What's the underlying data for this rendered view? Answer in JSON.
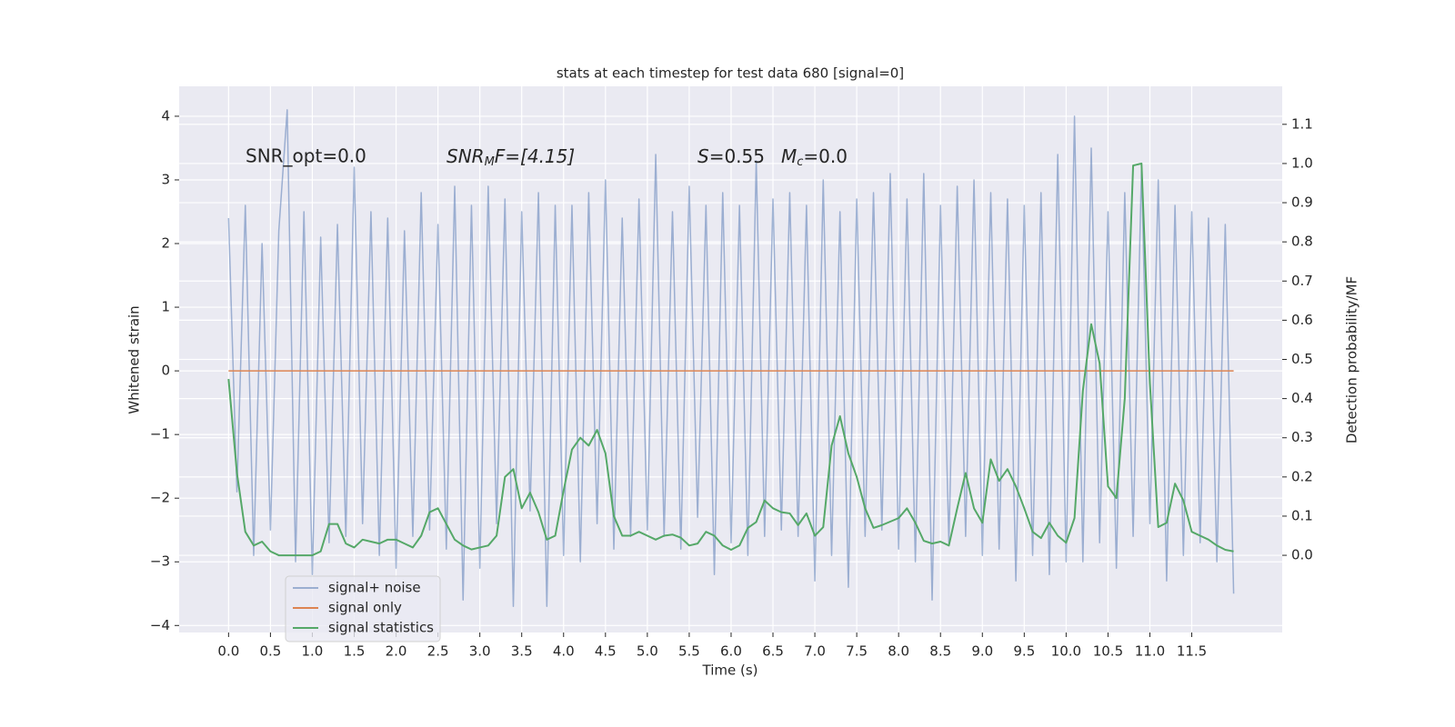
{
  "chart_data": {
    "type": "line",
    "title": "stats at each timestep for test data 680 [signal=0]",
    "xlabel": "Time (s)",
    "ylabel": "Whitened strain",
    "y2label": "Detection probability/MF",
    "annotations": [
      "SNR_opt=0.0",
      {
        "var": "SNR",
        "sub": "M",
        "tail": "F=[4.15]"
      },
      {
        "var": "S",
        "tail": "=0.55"
      },
      {
        "var": "M",
        "sub": "c",
        "tail": "=0.0"
      }
    ],
    "x": [
      0.0,
      0.1,
      0.2,
      0.3,
      0.4,
      0.5,
      0.6,
      0.7,
      0.8,
      0.9,
      1.0,
      1.1,
      1.2,
      1.3,
      1.4,
      1.5,
      1.6,
      1.7,
      1.8,
      1.9,
      2.0,
      2.1,
      2.2,
      2.3,
      2.4,
      2.5,
      2.6,
      2.7,
      2.8,
      2.9,
      3.0,
      3.1,
      3.2,
      3.3,
      3.4,
      3.5,
      3.6,
      3.7,
      3.8,
      3.9,
      4.0,
      4.1,
      4.2,
      4.3,
      4.4,
      4.5,
      4.6,
      4.7,
      4.8,
      4.9,
      5.0,
      5.1,
      5.2,
      5.3,
      5.4,
      5.5,
      5.6,
      5.7,
      5.8,
      5.9,
      6.0,
      6.1,
      6.2,
      6.3,
      6.4,
      6.5,
      6.6,
      6.7,
      6.8,
      6.9,
      7.0,
      7.1,
      7.2,
      7.3,
      7.4,
      7.5,
      7.6,
      7.7,
      7.8,
      7.9,
      8.0,
      8.1,
      8.2,
      8.3,
      8.4,
      8.5,
      8.6,
      8.7,
      8.8,
      8.9,
      9.0,
      9.1,
      9.2,
      9.3,
      9.4,
      9.5,
      9.6,
      9.7,
      9.8,
      9.9,
      10.0,
      10.1,
      10.2,
      10.3,
      10.4,
      10.5,
      10.6,
      10.7,
      10.8,
      10.9,
      11.0,
      11.1,
      11.2,
      11.3,
      11.4,
      11.5,
      11.6,
      11.7,
      11.8,
      11.9,
      12.0
    ],
    "series": [
      {
        "name": "signal+ noise",
        "color": "#4c72b0",
        "opacity": 0.5,
        "values": [
          2.4,
          -1.9,
          2.6,
          -2.9,
          2.0,
          -2.5,
          2.2,
          4.1,
          -3.0,
          2.5,
          -3.2,
          2.1,
          -2.7,
          2.3,
          -2.6,
          3.2,
          -2.4,
          2.5,
          -2.9,
          2.4,
          -3.1,
          2.2,
          -2.6,
          2.8,
          -2.5,
          2.3,
          -2.8,
          2.9,
          -3.6,
          2.6,
          -3.1,
          2.9,
          -2.4,
          2.7,
          -3.7,
          2.5,
          -2.2,
          2.8,
          -3.7,
          2.6,
          -2.9,
          2.6,
          -3.0,
          2.8,
          -2.4,
          3.0,
          -2.8,
          2.4,
          -2.6,
          2.7,
          -2.5,
          3.4,
          -2.6,
          2.5,
          -2.8,
          2.9,
          -2.3,
          2.6,
          -3.2,
          2.8,
          -2.7,
          2.6,
          -2.9,
          3.3,
          -2.6,
          2.7,
          -2.5,
          2.8,
          -2.6,
          2.6,
          -3.3,
          3.0,
          -2.9,
          2.5,
          -3.4,
          2.7,
          -2.6,
          2.8,
          -2.5,
          3.1,
          -2.8,
          2.7,
          -3.0,
          3.1,
          -3.6,
          2.6,
          -2.7,
          2.9,
          -2.6,
          3.0,
          -2.9,
          2.8,
          -2.8,
          2.7,
          -3.3,
          2.6,
          -2.9,
          2.8,
          -3.2,
          3.4,
          -3.0,
          4.0,
          -3.0,
          3.5,
          -2.7,
          2.5,
          -3.1,
          2.8,
          -2.6,
          3.2,
          -2.4,
          3.0,
          -3.3,
          2.6,
          -2.9,
          2.5,
          -2.7,
          2.4,
          -3.0,
          2.3,
          -3.5
        ]
      },
      {
        "name": "signal only",
        "color": "#dd8452",
        "values": [
          0,
          0,
          0,
          0,
          0,
          0,
          0,
          0,
          0,
          0,
          0,
          0,
          0,
          0,
          0,
          0,
          0,
          0,
          0,
          0,
          0,
          0,
          0,
          0,
          0,
          0,
          0,
          0,
          0,
          0,
          0,
          0,
          0,
          0,
          0,
          0,
          0,
          0,
          0,
          0,
          0,
          0,
          0,
          0,
          0,
          0,
          0,
          0,
          0,
          0,
          0,
          0,
          0,
          0,
          0,
          0,
          0,
          0,
          0,
          0,
          0,
          0,
          0,
          0,
          0,
          0,
          0,
          0,
          0,
          0,
          0,
          0,
          0,
          0,
          0,
          0,
          0,
          0,
          0,
          0,
          0,
          0,
          0,
          0,
          0,
          0,
          0,
          0,
          0,
          0,
          0,
          0,
          0,
          0,
          0,
          0,
          0,
          0,
          0,
          0,
          0,
          0,
          0,
          0,
          0,
          0,
          0,
          0,
          0,
          0,
          0,
          0,
          0,
          0,
          0,
          0,
          0,
          0,
          0,
          0,
          0
        ]
      },
      {
        "name": "signal statistics",
        "color": "#55a868",
        "axis": "y2",
        "values": [
          0.45,
          0.21,
          0.06,
          0.025,
          0.035,
          0.01,
          0.0,
          0.0,
          0.0,
          0.0,
          0.0,
          0.01,
          0.08,
          0.08,
          0.03,
          0.02,
          0.04,
          0.035,
          0.03,
          0.04,
          0.04,
          0.03,
          0.02,
          0.05,
          0.11,
          0.12,
          0.08,
          0.04,
          0.025,
          0.015,
          0.02,
          0.025,
          0.05,
          0.2,
          0.22,
          0.12,
          0.16,
          0.11,
          0.04,
          0.05,
          0.165,
          0.27,
          0.3,
          0.28,
          0.32,
          0.26,
          0.1,
          0.05,
          0.05,
          0.06,
          0.05,
          0.04,
          0.05,
          0.053,
          0.045,
          0.025,
          0.03,
          0.06,
          0.05,
          0.025,
          0.014,
          0.025,
          0.07,
          0.085,
          0.14,
          0.12,
          0.11,
          0.107,
          0.077,
          0.107,
          0.05,
          0.072,
          0.28,
          0.355,
          0.26,
          0.2,
          0.12,
          0.07,
          0.077,
          0.086,
          0.095,
          0.12,
          0.083,
          0.037,
          0.03,
          0.035,
          0.025,
          0.12,
          0.21,
          0.12,
          0.083,
          0.245,
          0.19,
          0.22,
          0.176,
          0.12,
          0.06,
          0.044,
          0.083,
          0.05,
          0.032,
          0.095,
          0.42,
          0.59,
          0.49,
          0.176,
          0.146,
          0.4,
          0.995,
          1.0,
          0.44,
          0.072,
          0.083,
          0.183,
          0.14,
          0.06,
          0.05,
          0.04,
          0.025,
          0.014,
          0.01
        ]
      }
    ],
    "xlim": [
      -0.59,
      12.58
    ],
    "ylim": [
      -4.11,
      4.47
    ],
    "y2lim": [
      -0.197,
      1.197
    ],
    "xticks": [
      {
        "value": 0,
        "label": "0.0"
      },
      0.5,
      {
        "value": 1,
        "label": "1.0"
      },
      1.5,
      {
        "value": 2,
        "label": "2.0"
      },
      2.5,
      {
        "value": 3,
        "label": "3.0"
      },
      3.5,
      {
        "value": 4,
        "label": "4.0"
      },
      4.5,
      {
        "value": 5,
        "label": "5.0"
      },
      5.5,
      {
        "value": 6,
        "label": "6.0"
      },
      6.5,
      {
        "value": 7,
        "label": "7.0"
      },
      7.5,
      {
        "value": 8,
        "label": "8.0"
      },
      8.5,
      {
        "value": 9,
        "label": "9.0"
      },
      9.5,
      {
        "value": 10,
        "label": "10.0"
      },
      10.5,
      {
        "value": 11,
        "label": "11.0"
      },
      11.5
    ],
    "yticks": [
      {
        "value": -4,
        "label": "−4"
      },
      {
        "value": -3,
        "label": "−3"
      },
      {
        "value": -2,
        "label": "−2"
      },
      {
        "value": -1,
        "label": "−1"
      },
      0,
      1,
      2,
      3,
      4
    ],
    "y2ticks": [
      {
        "value": 0,
        "label": "0.0"
      },
      0.1,
      0.2,
      0.3,
      0.4,
      0.5,
      0.6,
      0.7,
      0.8,
      0.9,
      {
        "value": 1,
        "label": "1.0"
      },
      1.1
    ],
    "grid": true,
    "legend": "lower left"
  }
}
